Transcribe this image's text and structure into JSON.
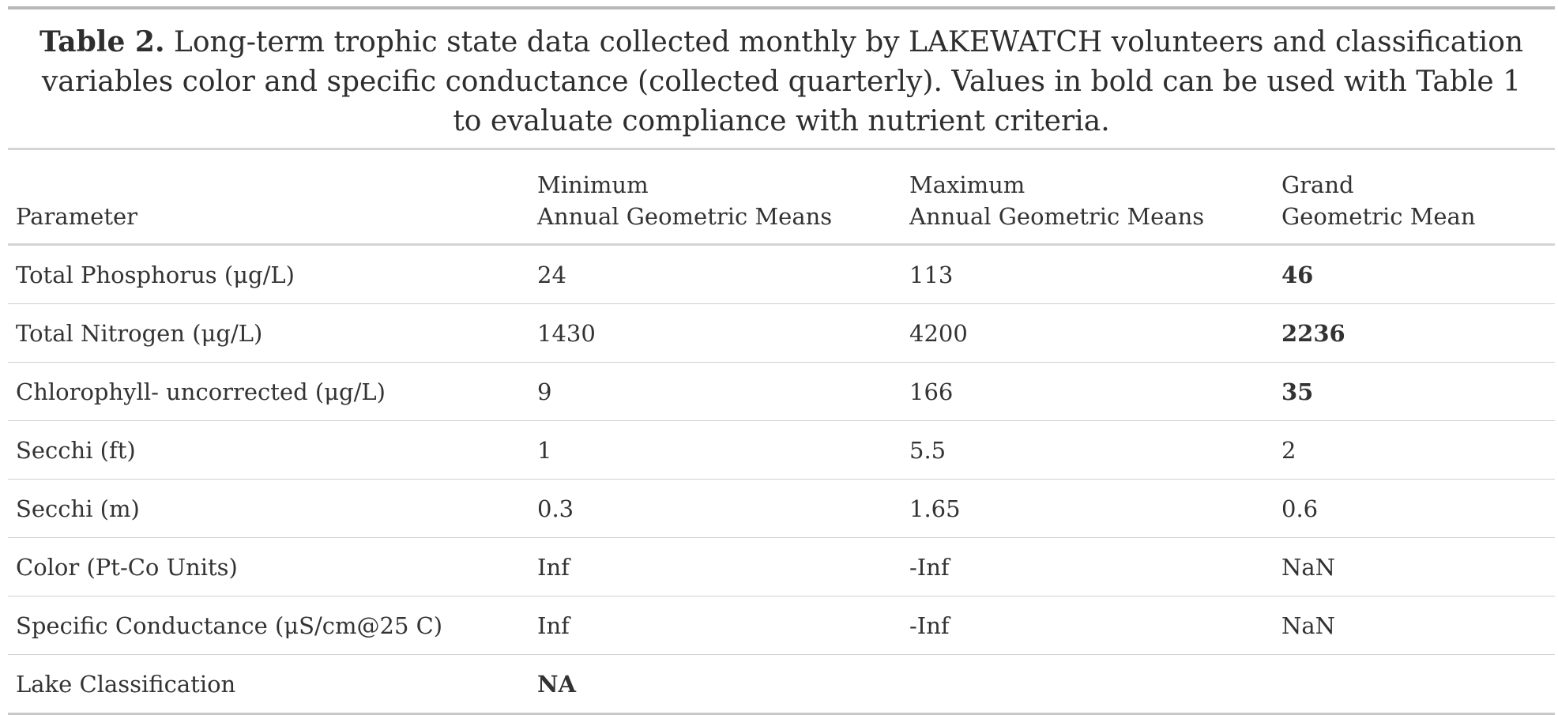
{
  "caption": {
    "lead": "Table 2.",
    "text": " Long-term trophic state data collected monthly by LAKEWATCH volunteers and classification variables color and specific conductance (collected quarterly). Values in bold can be used with Table 1 to evaluate compliance with nutrient criteria."
  },
  "columns": [
    {
      "line1": "",
      "line2": "Parameter"
    },
    {
      "line1": "Minimum",
      "line2": "Annual Geometric Means"
    },
    {
      "line1": "Maximum",
      "line2": "Annual Geometric Means"
    },
    {
      "line1": "Grand",
      "line2": "Geometric Mean"
    }
  ],
  "rows": [
    {
      "parameter": "Total Phosphorus (μg/L)",
      "min": "24",
      "max": "113",
      "grand": "46"
    },
    {
      "parameter": "Total Nitrogen (μg/L)",
      "min": "1430",
      "max": "4200",
      "grand": "2236"
    },
    {
      "parameter": "Chlorophyll- uncorrected (μg/L)",
      "min": "9",
      "max": "166",
      "grand": "35"
    },
    {
      "parameter": "Secchi (ft)",
      "min": "1",
      "max": "5.5",
      "grand": "2"
    },
    {
      "parameter": "Secchi (m)",
      "min": "0.3",
      "max": "1.65",
      "grand": "0.6"
    },
    {
      "parameter": "Color (Pt-Co Units)",
      "min": "Inf",
      "max": "-Inf",
      "grand": "NaN"
    },
    {
      "parameter": "Specific Conductance (μS/cm@25 C)",
      "min": "Inf",
      "max": "-Inf",
      "grand": "NaN"
    },
    {
      "parameter": "Lake Classification",
      "min": "NA",
      "max": "",
      "grand": ""
    }
  ]
}
